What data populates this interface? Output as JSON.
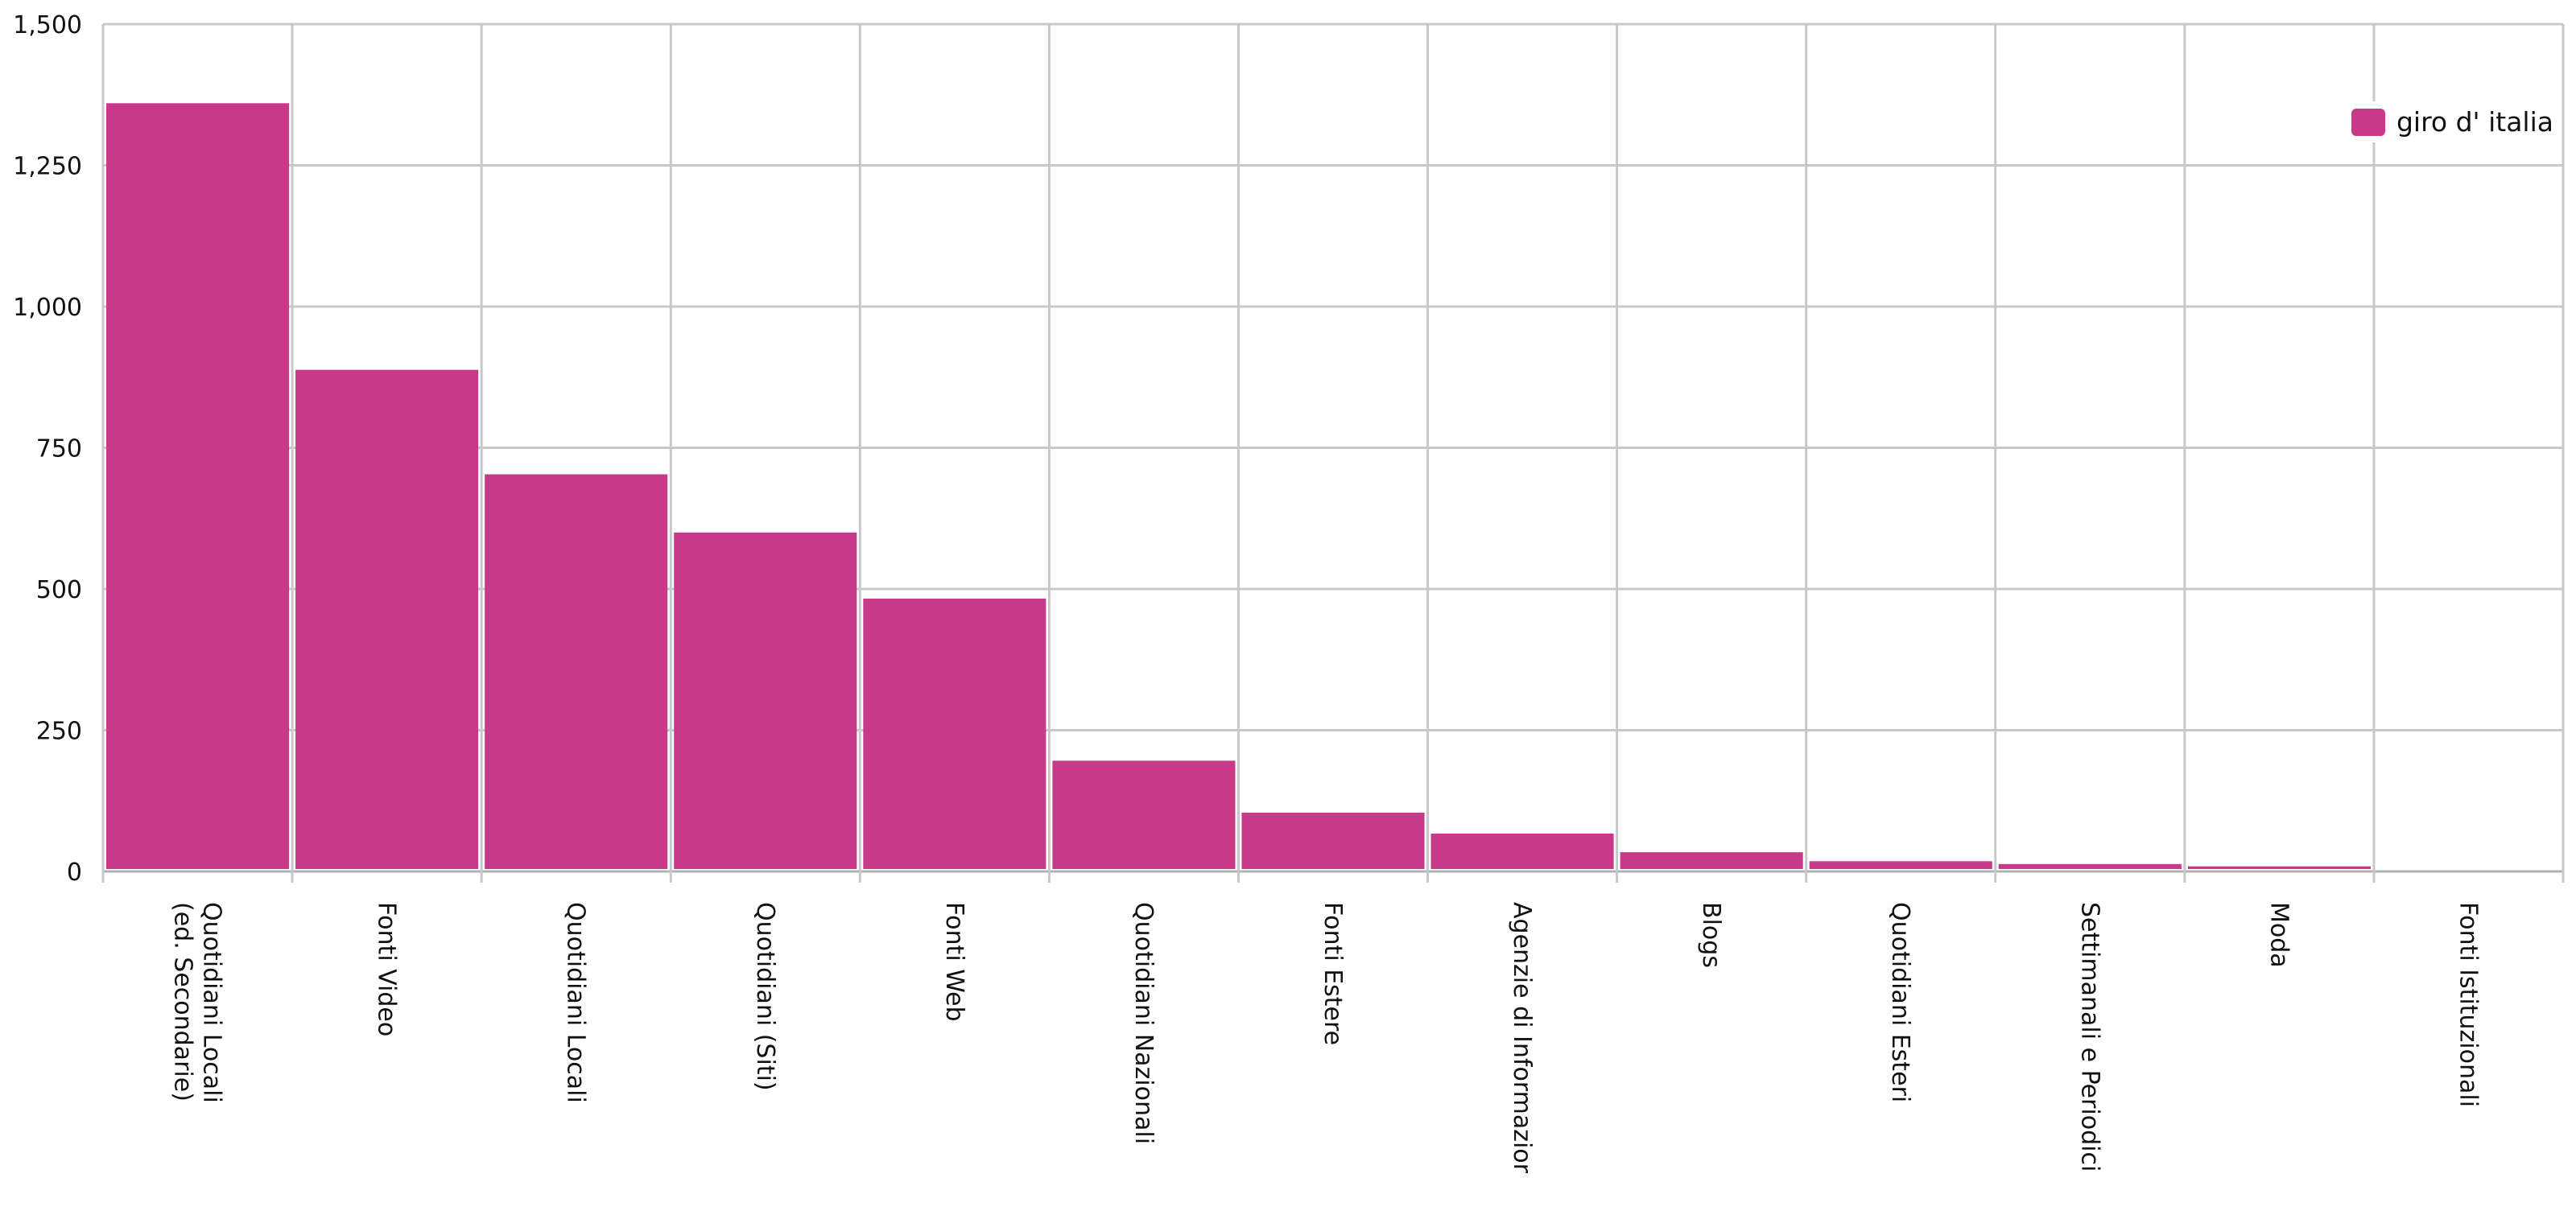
{
  "chart_data": {
    "type": "bar",
    "title": "",
    "xlabel": "",
    "ylabel": "",
    "categories": [
      "Quotidiani Locali (ed. Secondarie)",
      "Fonti Video",
      "Quotidiani Locali",
      "Quotidiani (Siti)",
      "Fonti Web",
      "Quotidiani Nazionali",
      "Fonti Estere",
      "Agenzie di Informazione",
      "Blogs",
      "Quotidiani Esteri",
      "Settimanali e Periodici",
      "Moda",
      "Fonti Istituzionali"
    ],
    "category_label_lines": [
      [
        "Quotidiani Locali",
        "(ed. Secondarie)"
      ],
      [
        "Fonti Video"
      ],
      [
        "Quotidiani Locali"
      ],
      [
        "Quotidiani (Siti)"
      ],
      [
        "Fonti Web"
      ],
      [
        "Quotidiani Nazionali"
      ],
      [
        "Fonti Estere"
      ],
      [
        "Agenzie di Informazior"
      ],
      [
        "Blogs"
      ],
      [
        "Quotidiani Esteri"
      ],
      [
        "Settimanali e Periodici"
      ],
      [
        "Moda"
      ],
      [
        "Fonti Istituzionali"
      ]
    ],
    "series": [
      {
        "name": "giro d' italia",
        "color": "#c8398a",
        "values": [
          1360,
          888,
          703,
          600,
          483,
          196,
          104,
          67,
          34,
          18,
          13,
          9,
          1
        ]
      }
    ],
    "ylim": [
      0,
      1500
    ],
    "yticks": [
      0,
      250,
      500,
      750,
      1000,
      1250,
      1500
    ],
    "ytick_labels": [
      "0",
      "250",
      "500",
      "750",
      "1,000",
      "1,250",
      "1,500"
    ],
    "grid": true,
    "legend": {
      "position": "top-right",
      "label": "giro d' italia",
      "color": "#c8398a"
    }
  }
}
